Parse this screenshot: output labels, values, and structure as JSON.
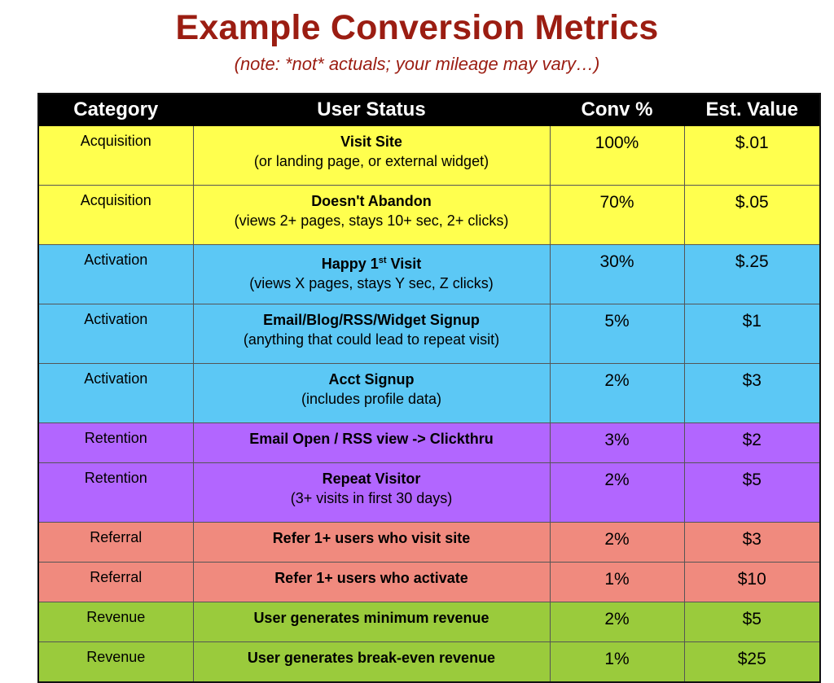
{
  "title": "Example Conversion Metrics",
  "subtitle": "(note: *not* actuals; your mileage may vary…)",
  "table": {
    "headers": [
      "Category",
      "User Status",
      "Conv %",
      "Est. Value"
    ],
    "rows": [
      {
        "category": "Acquisition",
        "status": "Visit Site",
        "detail": "(or landing page, or external widget)",
        "conv": "100%",
        "value": "$.01"
      },
      {
        "category": "Acquisition",
        "status": "Doesn't Abandon",
        "detail": "(views 2+ pages, stays 10+ sec, 2+ clicks)",
        "conv": "70%",
        "value": "$.05"
      },
      {
        "category": "Activation",
        "status": "Happy 1st Visit",
        "detail": "(views X pages, stays Y sec, Z clicks)",
        "conv": "30%",
        "value": "$.25"
      },
      {
        "category": "Activation",
        "status": "Email/Blog/RSS/Widget Signup",
        "detail": "(anything that could lead to repeat visit)",
        "conv": "5%",
        "value": "$1"
      },
      {
        "category": "Activation",
        "status": "Acct Signup",
        "detail": "(includes profile data)",
        "conv": "2%",
        "value": "$3"
      },
      {
        "category": "Retention",
        "status": "Email Open / RSS view -> Clickthru",
        "detail": "",
        "conv": "3%",
        "value": "$2"
      },
      {
        "category": "Retention",
        "status": "Repeat Visitor",
        "detail": "(3+ visits in first 30 days)",
        "conv": "2%",
        "value": "$5"
      },
      {
        "category": "Referral",
        "status": "Refer 1+ users who visit site",
        "detail": "",
        "conv": "2%",
        "value": "$3"
      },
      {
        "category": "Referral",
        "status": "Refer 1+ users who activate",
        "detail": "",
        "conv": "1%",
        "value": "$10"
      },
      {
        "category": "Revenue",
        "status": "User generates minimum revenue",
        "detail": "",
        "conv": "2%",
        "value": "$5"
      },
      {
        "category": "Revenue",
        "status": "User generates break-even revenue",
        "detail": "",
        "conv": "1%",
        "value": "$25"
      }
    ]
  },
  "colors": {
    "title": "#9b1d12",
    "acquisition": "#ffff4e",
    "activation": "#5cc8f5",
    "retention": "#b266ff",
    "referral": "#f08a7e",
    "revenue": "#9acb3c"
  }
}
